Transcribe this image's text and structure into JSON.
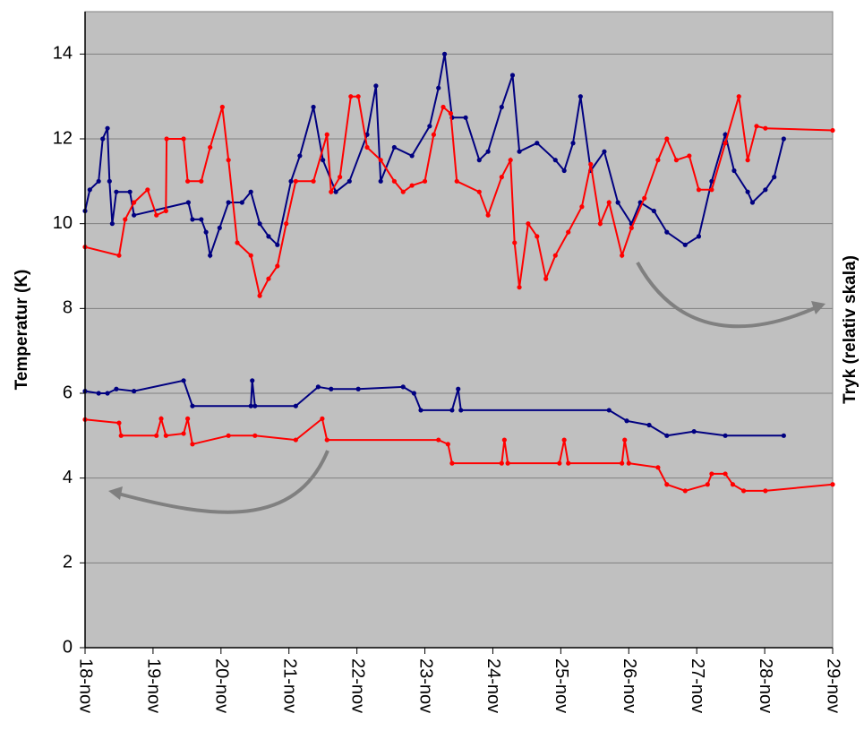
{
  "chart_data": {
    "type": "line",
    "y_label": "Temperatur (K)",
    "y2_label": "Tryk (relativ skala)",
    "xlim": [
      18,
      29
    ],
    "ylim": [
      0,
      15
    ],
    "xticks": [
      {
        "value": 18,
        "label": "18-nov"
      },
      {
        "value": 19,
        "label": "19-nov"
      },
      {
        "value": 20,
        "label": "20-nov"
      },
      {
        "value": 21,
        "label": "21-nov"
      },
      {
        "value": 22,
        "label": "22-nov"
      },
      {
        "value": 23,
        "label": "23-nov"
      },
      {
        "value": 24,
        "label": "24-nov"
      },
      {
        "value": 25,
        "label": "25-nov"
      },
      {
        "value": 26,
        "label": "26-nov"
      },
      {
        "value": 27,
        "label": "27-nov"
      },
      {
        "value": 28,
        "label": "28-nov"
      },
      {
        "value": 29,
        "label": "29-nov"
      }
    ],
    "yticks": [
      0,
      2,
      4,
      6,
      8,
      10,
      12,
      14
    ],
    "grid": true,
    "series": [
      {
        "color": "#000080",
        "x": [
          18.0,
          18.07,
          18.2,
          18.26,
          18.33,
          18.36,
          18.4,
          18.46,
          18.66,
          18.72,
          19.52,
          19.58,
          19.71,
          19.78,
          19.84,
          19.98,
          20.11,
          20.31,
          20.44,
          20.57,
          20.7,
          20.83,
          21.03,
          21.16,
          21.36,
          21.5,
          21.69,
          21.89,
          22.15,
          22.28,
          22.35,
          22.55,
          22.81,
          23.07,
          23.2,
          23.29,
          23.4,
          23.6,
          23.8,
          23.93,
          24.13,
          24.29,
          24.39,
          24.65,
          24.92,
          25.05,
          25.18,
          25.29,
          25.44,
          25.64,
          25.84,
          26.04,
          26.17,
          26.37,
          26.56,
          26.83,
          27.03,
          27.22,
          27.42,
          27.55,
          27.75,
          27.82,
          28.01,
          28.14,
          28.28
        ],
        "values": [
          10.3,
          10.8,
          11,
          12,
          12.25,
          11,
          10,
          10.75,
          10.75,
          10.2,
          10.5,
          10.1,
          10.1,
          9.8,
          9.25,
          9.9,
          10.5,
          10.5,
          10.75,
          10,
          9.7,
          9.5,
          11,
          11.6,
          12.75,
          11.5,
          10.75,
          11,
          12.1,
          13.25,
          11,
          11.8,
          11.6,
          12.3,
          13.2,
          14,
          12.5,
          12.5,
          11.5,
          11.7,
          12.75,
          13.5,
          11.7,
          11.9,
          11.5,
          11.25,
          11.9,
          13,
          11.25,
          11.7,
          10.5,
          10,
          10.5,
          10.3,
          9.8,
          9.5,
          9.7,
          11,
          12.1,
          11.25,
          10.75,
          10.5,
          10.8,
          11.1,
          12
        ]
      },
      {
        "color": "#ff0000",
        "x": [
          18.0,
          18.5,
          18.59,
          18.72,
          18.92,
          19.05,
          19.19,
          19.2,
          19.45,
          19.51,
          19.71,
          19.84,
          20.02,
          20.11,
          20.24,
          20.44,
          20.57,
          20.7,
          20.83,
          20.96,
          21.1,
          21.36,
          21.56,
          21.62,
          21.75,
          21.91,
          22.02,
          22.15,
          22.35,
          22.55,
          22.68,
          22.81,
          23.0,
          23.13,
          23.27,
          23.38,
          23.47,
          23.8,
          23.93,
          24.13,
          24.26,
          24.32,
          24.39,
          24.52,
          24.65,
          24.78,
          24.92,
          25.11,
          25.31,
          25.44,
          25.58,
          25.71,
          25.9,
          26.04,
          26.23,
          26.43,
          26.56,
          26.7,
          26.89,
          27.03,
          27.22,
          27.42,
          27.62,
          27.75,
          27.88,
          28.01,
          29.0
        ],
        "values": [
          9.45,
          9.25,
          10.1,
          10.5,
          10.8,
          10.2,
          10.3,
          12,
          12,
          11,
          11,
          11.8,
          12.75,
          11.5,
          9.55,
          9.25,
          8.3,
          8.7,
          9,
          10,
          11,
          11,
          12.1,
          10.75,
          11.1,
          13,
          13,
          11.8,
          11.5,
          11,
          10.75,
          10.9,
          11,
          12.1,
          12.75,
          12.6,
          11,
          10.75,
          10.2,
          11.1,
          11.5,
          9.55,
          8.5,
          10,
          9.7,
          8.7,
          9.25,
          9.8,
          10.4,
          11.4,
          10,
          10.5,
          9.25,
          9.9,
          10.6,
          11.5,
          12,
          11.5,
          11.6,
          10.8,
          10.8,
          11.9,
          13,
          11.5,
          12.3,
          12.25,
          12.2
        ]
      },
      {
        "color": "#000080",
        "x": [
          18.0,
          18.2,
          18.33,
          18.46,
          18.72,
          19.45,
          19.58,
          20.44,
          20.46,
          20.5,
          21.1,
          21.43,
          21.62,
          22.02,
          22.68,
          22.84,
          22.94,
          23.4,
          23.49,
          23.53,
          25.71,
          25.97,
          26.3,
          26.56,
          26.96,
          27.42,
          28.28
        ],
        "values": [
          6.05,
          6,
          6,
          6.1,
          6.05,
          6.3,
          5.7,
          5.7,
          6.3,
          5.7,
          5.7,
          6.15,
          6.1,
          6.1,
          6.15,
          6,
          5.6,
          5.6,
          6.1,
          5.6,
          5.6,
          5.35,
          5.25,
          5,
          5.1,
          5,
          5
        ]
      },
      {
        "color": "#ff0000",
        "x": [
          18.0,
          18.5,
          18.53,
          19.05,
          19.12,
          19.19,
          19.45,
          19.51,
          19.58,
          20.11,
          20.5,
          21.1,
          21.49,
          21.56,
          23.2,
          23.34,
          23.4,
          24.13,
          24.17,
          24.22,
          24.98,
          25.05,
          25.11,
          25.9,
          25.94,
          26.0,
          26.43,
          26.56,
          26.83,
          27.16,
          27.22,
          27.42,
          27.53,
          27.69,
          28.01,
          29.0
        ],
        "values": [
          5.38,
          5.3,
          5,
          5,
          5.4,
          5,
          5.05,
          5.4,
          4.8,
          5,
          5,
          4.9,
          5.4,
          4.9,
          4.9,
          4.8,
          4.35,
          4.35,
          4.9,
          4.35,
          4.35,
          4.9,
          4.35,
          4.35,
          4.9,
          4.35,
          4.25,
          3.85,
          3.7,
          3.85,
          4.1,
          4.1,
          3.85,
          3.7,
          3.7,
          3.85
        ]
      }
    ]
  }
}
